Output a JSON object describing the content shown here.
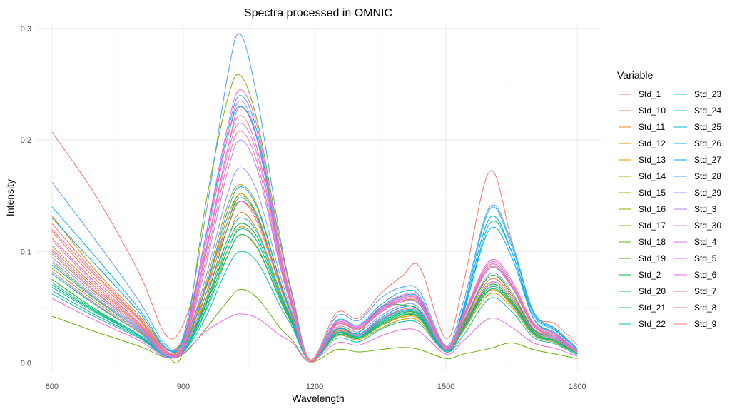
{
  "chart_data": {
    "type": "line",
    "title": "Spectra processed in OMNIC",
    "xlabel": "Wavelength",
    "ylabel": "Intensity",
    "xlim": [
      566,
      1855
    ],
    "ylim": [
      -0.006,
      0.305
    ],
    "x_ticks": [
      600,
      900,
      1200,
      1500,
      1800
    ],
    "y_ticks": [
      0.0,
      0.1,
      0.2,
      0.3
    ],
    "y_tick_labels": [
      "0.0",
      "0.1",
      "0.2",
      "0.3"
    ],
    "grid": true,
    "legend_title": "Variable",
    "legend_position": "right",
    "legend_columns": 2,
    "x": [
      600,
      700,
      800,
      860,
      900,
      950,
      1000,
      1030,
      1070,
      1120,
      1150,
      1190,
      1250,
      1300,
      1350,
      1400,
      1440,
      1500,
      1540,
      1600,
      1650,
      1700,
      1750,
      1800
    ],
    "series": [
      {
        "name": "Std_1",
        "color": "#F8766D",
        "values": [
          0.207,
          0.15,
          0.08,
          0.025,
          0.035,
          0.1,
          0.19,
          0.23,
          0.2,
          0.11,
          0.06,
          0.003,
          0.045,
          0.04,
          0.062,
          0.078,
          0.086,
          0.022,
          0.072,
          0.172,
          0.11,
          0.045,
          0.035,
          0.016
        ]
      },
      {
        "name": "Std_10",
        "color": "#F27D52",
        "values": [
          0.125,
          0.08,
          0.04,
          0.012,
          0.02,
          0.065,
          0.12,
          0.145,
          0.125,
          0.07,
          0.04,
          0.002,
          0.03,
          0.025,
          0.038,
          0.048,
          0.045,
          0.012,
          0.035,
          0.075,
          0.06,
          0.03,
          0.022,
          0.01
        ]
      },
      {
        "name": "Std_11",
        "color": "#E7861B",
        "values": [
          0.118,
          0.075,
          0.038,
          0.01,
          0.018,
          0.06,
          0.11,
          0.135,
          0.118,
          0.066,
          0.038,
          0.002,
          0.028,
          0.024,
          0.036,
          0.045,
          0.043,
          0.011,
          0.033,
          0.072,
          0.058,
          0.028,
          0.02,
          0.009
        ]
      },
      {
        "name": "Std_12",
        "color": "#DB8E00",
        "values": [
          0.132,
          0.083,
          0.042,
          0.013,
          0.021,
          0.068,
          0.125,
          0.152,
          0.13,
          0.072,
          0.042,
          0.002,
          0.031,
          0.026,
          0.04,
          0.05,
          0.047,
          0.013,
          0.037,
          0.078,
          0.062,
          0.031,
          0.023,
          0.01
        ]
      },
      {
        "name": "Std_13",
        "color": "#CD9600",
        "values": [
          0.105,
          0.068,
          0.034,
          0.009,
          0.016,
          0.055,
          0.1,
          0.122,
          0.108,
          0.06,
          0.035,
          0.002,
          0.026,
          0.022,
          0.033,
          0.041,
          0.039,
          0.01,
          0.03,
          0.065,
          0.052,
          0.026,
          0.019,
          0.008
        ]
      },
      {
        "name": "Std_14",
        "color": "#BE9C00",
        "values": [
          0.098,
          0.063,
          0.032,
          0.009,
          0.015,
          0.052,
          0.095,
          0.115,
          0.102,
          0.057,
          0.033,
          0.002,
          0.024,
          0.021,
          0.031,
          0.039,
          0.037,
          0.01,
          0.029,
          0.062,
          0.05,
          0.025,
          0.018,
          0.008
        ]
      },
      {
        "name": "Std_15",
        "color": "#AEA200",
        "values": [
          0.09,
          0.058,
          0.03,
          0.008,
          0.014,
          0.07,
          0.14,
          0.16,
          0.14,
          0.075,
          0.042,
          0.002,
          0.028,
          0.023,
          0.034,
          0.043,
          0.041,
          0.011,
          0.032,
          0.07,
          0.056,
          0.027,
          0.02,
          0.009
        ]
      },
      {
        "name": "Std_16",
        "color": "#9AA800",
        "values": [
          0.085,
          0.055,
          0.028,
          0.008,
          0.013,
          0.065,
          0.13,
          0.15,
          0.132,
          0.071,
          0.04,
          0.002,
          0.027,
          0.022,
          0.033,
          0.042,
          0.04,
          0.011,
          0.031,
          0.068,
          0.054,
          0.026,
          0.019,
          0.008
        ]
      },
      {
        "name": "Std_17",
        "color": "#84AD00",
        "values": [
          0.08,
          0.052,
          0.027,
          0.007,
          0.012,
          0.14,
          0.235,
          0.258,
          0.215,
          0.11,
          0.058,
          0.002,
          0.035,
          0.03,
          0.046,
          0.056,
          0.052,
          0.013,
          0.04,
          0.085,
          0.068,
          0.033,
          0.024,
          0.01
        ]
      },
      {
        "name": "Std_18",
        "color": "#64B200",
        "values": [
          0.042,
          0.028,
          0.015,
          0.005,
          0.008,
          0.03,
          0.055,
          0.066,
          0.058,
          0.032,
          0.02,
          0.001,
          0.012,
          0.01,
          0.012,
          0.014,
          0.012,
          0.004,
          0.008,
          0.013,
          0.018,
          0.012,
          0.008,
          0.004
        ]
      },
      {
        "name": "Std_19",
        "color": "#24B700",
        "values": [
          0.075,
          0.048,
          0.025,
          0.006,
          0.011,
          0.055,
          0.12,
          0.145,
          0.128,
          0.07,
          0.04,
          0.002,
          0.03,
          0.027,
          0.05,
          0.052,
          0.046,
          0.012,
          0.036,
          0.078,
          0.062,
          0.03,
          0.022,
          0.009
        ]
      },
      {
        "name": "Std_2",
        "color": "#00BA38",
        "values": [
          0.07,
          0.046,
          0.024,
          0.006,
          0.011,
          0.05,
          0.105,
          0.125,
          0.112,
          0.062,
          0.036,
          0.002,
          0.027,
          0.023,
          0.036,
          0.045,
          0.042,
          0.011,
          0.033,
          0.07,
          0.056,
          0.028,
          0.02,
          0.008
        ]
      },
      {
        "name": "Std_20",
        "color": "#00BE70",
        "values": [
          0.065,
          0.043,
          0.023,
          0.006,
          0.01,
          0.045,
          0.095,
          0.115,
          0.103,
          0.058,
          0.034,
          0.002,
          0.025,
          0.022,
          0.034,
          0.043,
          0.04,
          0.01,
          0.031,
          0.066,
          0.053,
          0.026,
          0.019,
          0.008
        ]
      },
      {
        "name": "Std_21",
        "color": "#00C097",
        "values": [
          0.08,
          0.052,
          0.027,
          0.007,
          0.012,
          0.06,
          0.125,
          0.148,
          0.13,
          0.07,
          0.04,
          0.002,
          0.029,
          0.025,
          0.038,
          0.047,
          0.044,
          0.012,
          0.045,
          0.125,
          0.1,
          0.04,
          0.026,
          0.01
        ]
      },
      {
        "name": "Std_22",
        "color": "#00C1B2",
        "values": [
          0.062,
          0.041,
          0.022,
          0.006,
          0.01,
          0.04,
          0.085,
          0.1,
          0.09,
          0.052,
          0.031,
          0.002,
          0.022,
          0.019,
          0.03,
          0.037,
          0.035,
          0.01,
          0.025,
          0.058,
          0.046,
          0.023,
          0.017,
          0.007
        ]
      },
      {
        "name": "Std_23",
        "color": "#00BFC4",
        "values": [
          0.068,
          0.045,
          0.024,
          0.006,
          0.011,
          0.047,
          0.1,
          0.12,
          0.108,
          0.06,
          0.035,
          0.002,
          0.026,
          0.023,
          0.035,
          0.044,
          0.041,
          0.011,
          0.032,
          0.068,
          0.055,
          0.027,
          0.019,
          0.008
        ]
      },
      {
        "name": "Std_24",
        "color": "#00BBDA",
        "values": [
          0.072,
          0.047,
          0.025,
          0.007,
          0.011,
          0.052,
          0.11,
          0.13,
          0.116,
          0.064,
          0.037,
          0.002,
          0.027,
          0.024,
          0.037,
          0.046,
          0.043,
          0.011,
          0.034,
          0.072,
          0.058,
          0.029,
          0.021,
          0.009
        ]
      },
      {
        "name": "Std_25",
        "color": "#00B5EE",
        "values": [
          0.14,
          0.095,
          0.048,
          0.014,
          0.022,
          0.11,
          0.205,
          0.24,
          0.205,
          0.1,
          0.052,
          0.002,
          0.038,
          0.034,
          0.052,
          0.064,
          0.06,
          0.015,
          0.05,
          0.138,
          0.105,
          0.045,
          0.03,
          0.012
        ]
      },
      {
        "name": "Std_26",
        "color": "#00ADFA",
        "values": [
          0.088,
          0.057,
          0.029,
          0.008,
          0.013,
          0.066,
          0.135,
          0.158,
          0.138,
          0.074,
          0.041,
          0.002,
          0.03,
          0.026,
          0.04,
          0.05,
          0.047,
          0.012,
          0.046,
          0.12,
          0.095,
          0.04,
          0.027,
          0.011
        ]
      },
      {
        "name": "Std_27",
        "color": "#00A5FF",
        "values": [
          0.13,
          0.088,
          0.045,
          0.013,
          0.021,
          0.105,
          0.2,
          0.23,
          0.198,
          0.097,
          0.05,
          0.002,
          0.036,
          0.032,
          0.049,
          0.06,
          0.057,
          0.014,
          0.048,
          0.13,
          0.1,
          0.043,
          0.029,
          0.012
        ]
      },
      {
        "name": "Std_28",
        "color": "#4B9FFF",
        "values": [
          0.162,
          0.11,
          0.055,
          0.016,
          0.024,
          0.13,
          0.255,
          0.295,
          0.235,
          0.115,
          0.06,
          0.002,
          0.042,
          0.038,
          0.058,
          0.068,
          0.064,
          0.016,
          0.055,
          0.14,
          0.108,
          0.046,
          0.031,
          0.013
        ]
      },
      {
        "name": "Std_29",
        "color": "#8B93FF",
        "values": [
          0.095,
          0.061,
          0.031,
          0.009,
          0.015,
          0.075,
          0.15,
          0.175,
          0.152,
          0.08,
          0.044,
          0.002,
          0.032,
          0.028,
          0.042,
          0.052,
          0.049,
          0.013,
          0.038,
          0.08,
          0.064,
          0.031,
          0.022,
          0.009
        ]
      },
      {
        "name": "Std_3",
        "color": "#B385FF",
        "values": [
          0.092,
          0.059,
          0.03,
          0.008,
          0.014,
          0.085,
          0.17,
          0.2,
          0.172,
          0.088,
          0.047,
          0.002,
          0.034,
          0.03,
          0.045,
          0.055,
          0.052,
          0.013,
          0.04,
          0.085,
          0.068,
          0.033,
          0.023,
          0.01
        ]
      },
      {
        "name": "Std_30",
        "color": "#CF78FF",
        "values": [
          0.1,
          0.064,
          0.032,
          0.009,
          0.015,
          0.095,
          0.185,
          0.215,
          0.185,
          0.093,
          0.049,
          0.002,
          0.035,
          0.031,
          0.047,
          0.057,
          0.054,
          0.014,
          0.042,
          0.088,
          0.07,
          0.034,
          0.024,
          0.01
        ]
      },
      {
        "name": "Std_4",
        "color": "#E36EF6",
        "values": [
          0.11,
          0.07,
          0.035,
          0.01,
          0.017,
          0.105,
          0.2,
          0.235,
          0.2,
          0.1,
          0.052,
          0.002,
          0.036,
          0.032,
          0.048,
          0.059,
          0.056,
          0.014,
          0.043,
          0.09,
          0.072,
          0.035,
          0.025,
          0.01
        ]
      },
      {
        "name": "Std_5",
        "color": "#F066EA",
        "values": [
          0.058,
          0.038,
          0.02,
          0.005,
          0.009,
          0.028,
          0.04,
          0.044,
          0.04,
          0.025,
          0.018,
          0.001,
          0.018,
          0.016,
          0.024,
          0.03,
          0.028,
          0.008,
          0.02,
          0.04,
          0.032,
          0.018,
          0.013,
          0.006
        ]
      },
      {
        "name": "Std_6",
        "color": "#FA62DB",
        "values": [
          0.082,
          0.053,
          0.027,
          0.007,
          0.012,
          0.06,
          0.125,
          0.145,
          0.128,
          0.07,
          0.04,
          0.002,
          0.029,
          0.025,
          0.039,
          0.048,
          0.045,
          0.012,
          0.034,
          0.072,
          0.058,
          0.029,
          0.021,
          0.009
        ]
      },
      {
        "name": "Std_7",
        "color": "#FF62BC",
        "values": [
          0.12,
          0.078,
          0.039,
          0.011,
          0.019,
          0.112,
          0.21,
          0.245,
          0.21,
          0.104,
          0.054,
          0.002,
          0.037,
          0.033,
          0.05,
          0.061,
          0.058,
          0.015,
          0.044,
          0.092,
          0.074,
          0.036,
          0.026,
          0.011
        ]
      },
      {
        "name": "Std_8",
        "color": "#FF6A98",
        "values": [
          0.112,
          0.072,
          0.036,
          0.01,
          0.017,
          0.098,
          0.19,
          0.222,
          0.19,
          0.096,
          0.05,
          0.002,
          0.035,
          0.031,
          0.047,
          0.058,
          0.055,
          0.014,
          0.042,
          0.088,
          0.07,
          0.034,
          0.024,
          0.01
        ]
      },
      {
        "name": "Std_9",
        "color": "#FC717F",
        "values": [
          0.102,
          0.066,
          0.033,
          0.009,
          0.016,
          0.09,
          0.178,
          0.208,
          0.178,
          0.09,
          0.048,
          0.002,
          0.034,
          0.03,
          0.046,
          0.056,
          0.053,
          0.014,
          0.041,
          0.086,
          0.069,
          0.033,
          0.024,
          0.01
        ]
      }
    ]
  }
}
